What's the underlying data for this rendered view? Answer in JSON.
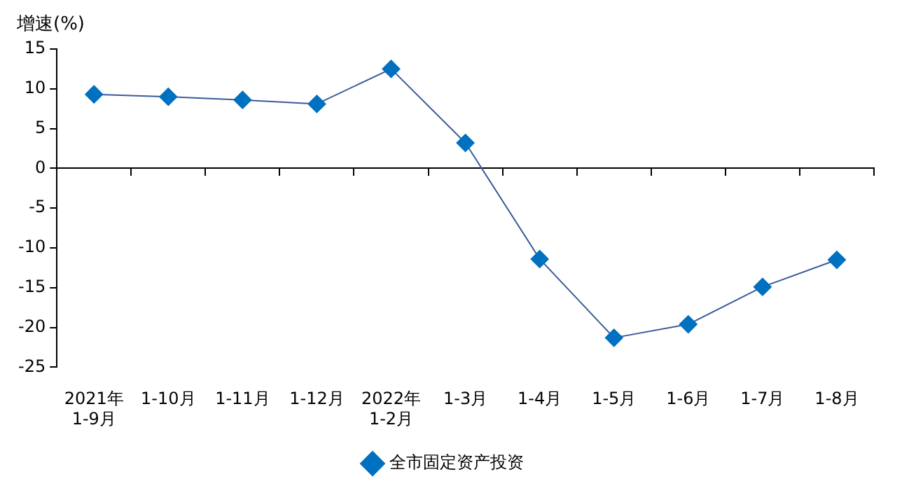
{
  "chart_data": {
    "type": "line",
    "ylabel": "增速(%)",
    "categories": [
      "2021年\n1-9月",
      "1-10月",
      "1-11月",
      "1-12月",
      "2022年\n1-2月",
      "1-3月",
      "1-4月",
      "1-5月",
      "1-6月",
      "1-7月",
      "1-8月"
    ],
    "series": [
      {
        "name": "全市固定资产投资",
        "color": "#0070c0",
        "values": [
          9.3,
          9.0,
          8.6,
          8.1,
          12.5,
          3.2,
          -11.4,
          -21.3,
          -19.6,
          -14.9,
          -11.5
        ]
      }
    ],
    "ylim": [
      -25,
      15
    ],
    "yticks": [
      -25,
      -20,
      -15,
      -10,
      -5,
      0,
      5,
      10,
      15
    ],
    "legend": "bottom",
    "marker": "diamond",
    "line_style": "solid"
  }
}
